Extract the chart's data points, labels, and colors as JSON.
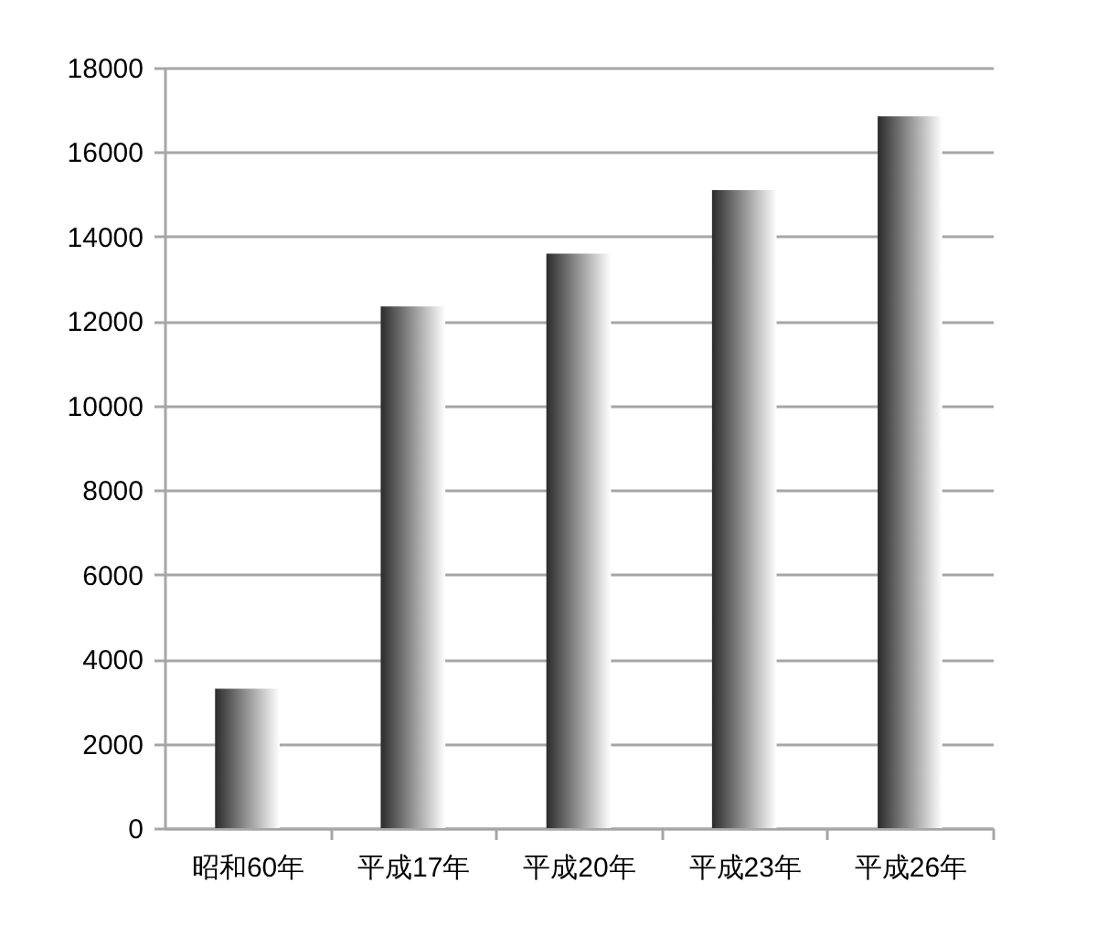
{
  "chart_data": {
    "type": "bar",
    "categories": [
      "昭和60年",
      "平成17年",
      "平成20年",
      "平成23年",
      "平成26年"
    ],
    "values": [
      3300,
      12350,
      13600,
      15100,
      16850
    ],
    "color": "#2b2b2b",
    "ylim": [
      0,
      18000
    ],
    "yticks": [
      0,
      2000,
      4000,
      6000,
      8000,
      10000,
      12000,
      14000,
      16000,
      18000
    ],
    "grid": "y"
  }
}
